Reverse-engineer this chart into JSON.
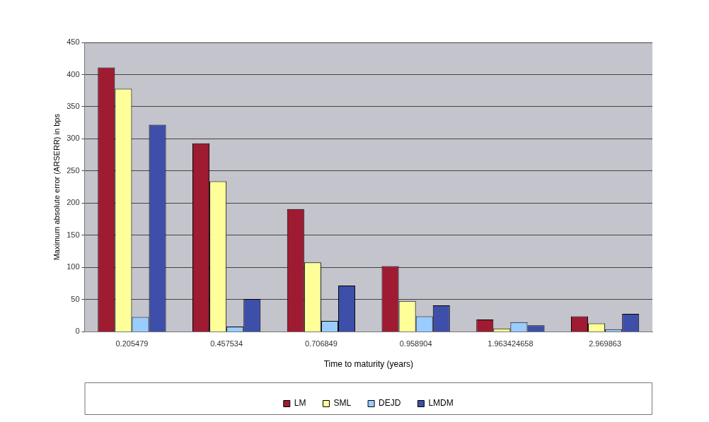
{
  "chart_data": {
    "type": "bar",
    "xlabel": "Time to maturity (years)",
    "ylabel": "Maximum absolute error (ARSERR) in bps",
    "categories": [
      "0.205479",
      "0.457534",
      "0.706849",
      "0.958904",
      "1.963424658",
      "2.969863"
    ],
    "series": [
      {
        "name": "LM",
        "color": "#9e1b32",
        "values": [
          411,
          293,
          191,
          102,
          19,
          24
        ]
      },
      {
        "name": "SML",
        "color": "#ffff99",
        "values": [
          378,
          234,
          108,
          48,
          5,
          13
        ]
      },
      {
        "name": "DEJD",
        "color": "#99ccff",
        "values": [
          23,
          8,
          17,
          24,
          15,
          4
        ]
      },
      {
        "name": "LMDM",
        "color": "#3d4fa8",
        "values": [
          322,
          51,
          72,
          41,
          10,
          28
        ]
      }
    ],
    "ylim": [
      0,
      450
    ],
    "yticks": [
      0,
      50,
      100,
      150,
      200,
      250,
      300,
      350,
      400,
      450
    ],
    "grid": "y",
    "legend": "bottom"
  }
}
